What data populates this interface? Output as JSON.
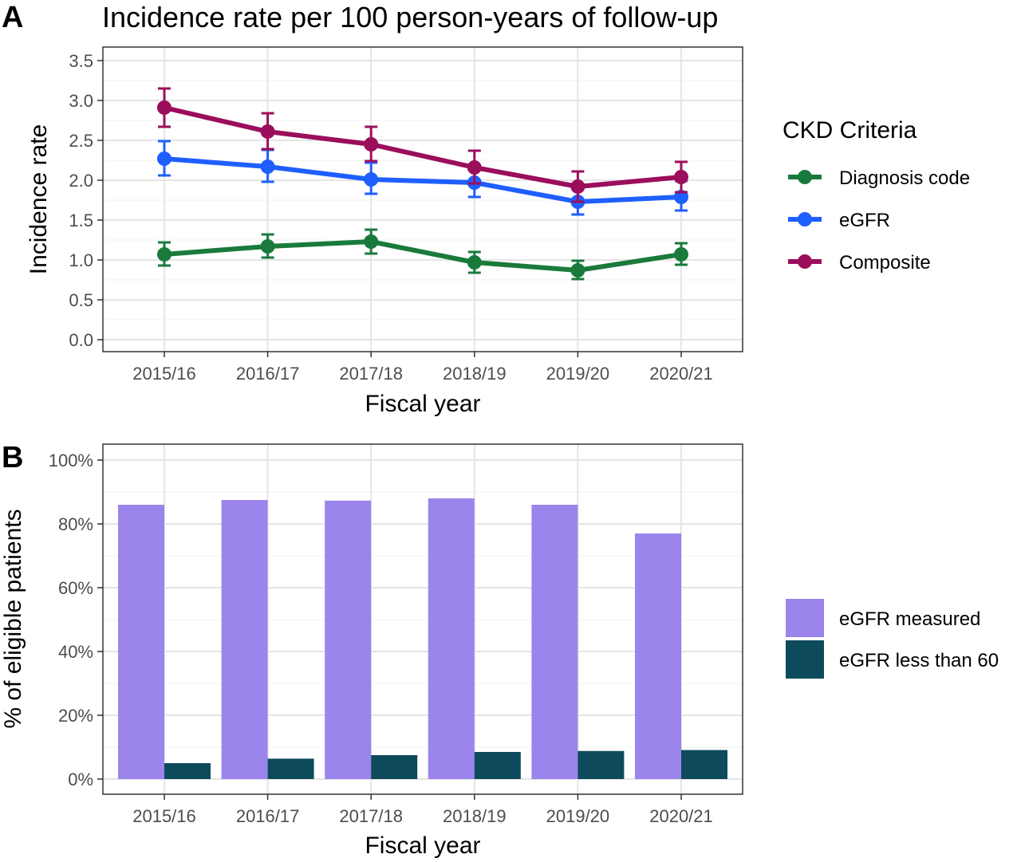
{
  "panels": {
    "a": {
      "letter": "A",
      "title": "Incidence rate per 100 person-years of follow-up"
    },
    "b": {
      "letter": "B"
    }
  },
  "colors": {
    "diagnosis": "#1a7a3c",
    "egfr": "#1f5fff",
    "composite": "#9b0e5c",
    "egfr_measured": "#9b84ec",
    "egfr_lt60": "#0d4a5c"
  },
  "chart_data": [
    {
      "type": "line",
      "categories": [
        "2015/16",
        "2016/17",
        "2017/18",
        "2018/19",
        "2019/20",
        "2020/21"
      ],
      "xlabel": "Fiscal year",
      "ylabel": "Incidence rate",
      "ylim": [
        0,
        3.5
      ],
      "yticks": [
        "0.0",
        "0.5",
        "1.0",
        "1.5",
        "2.0",
        "2.5",
        "3.0",
        "3.5"
      ],
      "grid": true,
      "legend": {
        "title": "CKD Criteria",
        "position": "right"
      },
      "series": [
        {
          "name": "Diagnosis code",
          "color": "#1a7a3c",
          "values": [
            1.07,
            1.17,
            1.23,
            0.97,
            0.87,
            1.07
          ],
          "lower": [
            0.93,
            1.03,
            1.08,
            0.84,
            0.76,
            0.94
          ],
          "upper": [
            1.22,
            1.32,
            1.38,
            1.1,
            0.99,
            1.21
          ]
        },
        {
          "name": "eGFR",
          "color": "#1f5fff",
          "values": [
            2.27,
            2.17,
            2.01,
            1.97,
            1.73,
            1.79
          ],
          "lower": [
            2.06,
            1.98,
            1.83,
            1.79,
            1.57,
            1.62
          ],
          "upper": [
            2.49,
            2.38,
            2.22,
            2.17,
            1.92,
            1.99
          ]
        },
        {
          "name": "Composite",
          "color": "#9b0e5c",
          "values": [
            2.91,
            2.61,
            2.45,
            2.16,
            1.92,
            2.04
          ],
          "lower": [
            2.67,
            2.39,
            2.24,
            1.96,
            1.73,
            1.85
          ],
          "upper": [
            3.15,
            2.84,
            2.67,
            2.37,
            2.11,
            2.23
          ]
        }
      ]
    },
    {
      "type": "bar",
      "categories": [
        "2015/16",
        "2016/17",
        "2017/18",
        "2018/19",
        "2019/20",
        "2020/21"
      ],
      "xlabel": "Fiscal year",
      "ylabel": "% of eligible patients",
      "ylim": [
        0,
        100
      ],
      "yticks": [
        "0%",
        "20%",
        "40%",
        "60%",
        "80%",
        "100%"
      ],
      "grid": true,
      "legend": {
        "position": "right"
      },
      "series": [
        {
          "name": "eGFR measured",
          "color": "#9b84ec",
          "values": [
            86,
            87.5,
            87.3,
            88,
            86,
            77
          ]
        },
        {
          "name": "eGFR less than 60",
          "color": "#0d4a5c",
          "values": [
            5,
            6.4,
            7.5,
            8.5,
            8.8,
            9.1
          ]
        }
      ]
    }
  ]
}
